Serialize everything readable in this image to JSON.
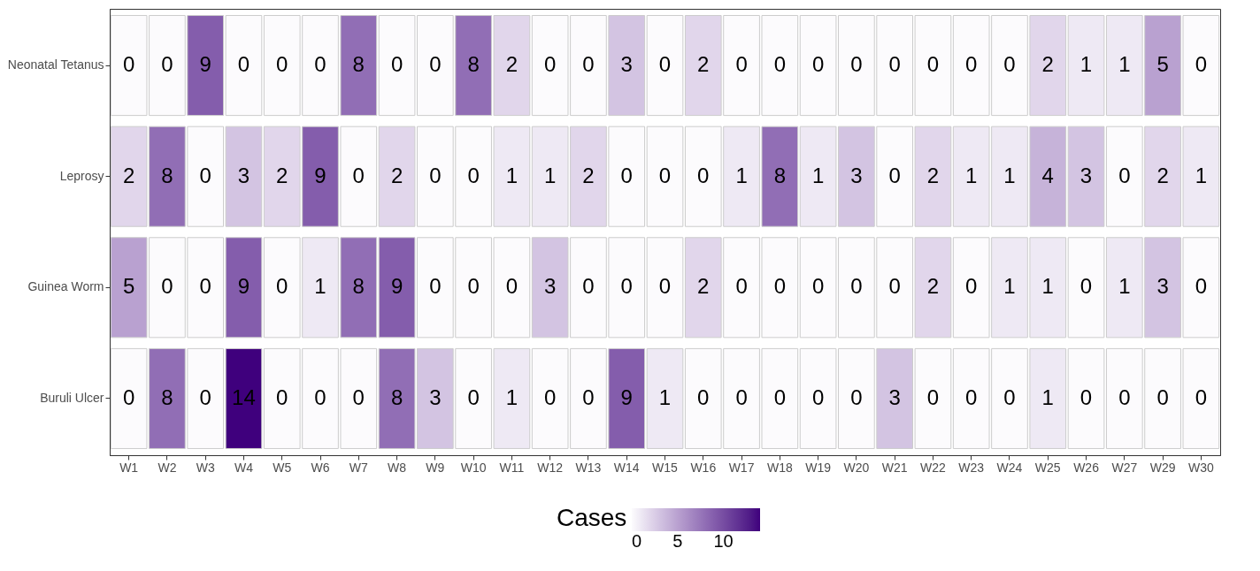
{
  "chart_data": {
    "type": "heatmap",
    "categories": [
      "W1",
      "W2",
      "W3",
      "W4",
      "W5",
      "W6",
      "W7",
      "W8",
      "W9",
      "W10",
      "W11",
      "W12",
      "W13",
      "W14",
      "W15",
      "W16",
      "W17",
      "W18",
      "W19",
      "W20",
      "W21",
      "W22",
      "W23",
      "W24",
      "W25",
      "W26",
      "W27",
      "W29",
      "W30"
    ],
    "y_categories": [
      "Neonatal Tetanus",
      "Leprosy",
      "Guinea Worm",
      "Buruli Ulcer"
    ],
    "cells": [
      [
        0,
        0,
        9,
        0,
        0,
        0,
        8,
        0,
        0,
        8,
        2,
        0,
        0,
        3,
        0,
        2,
        0,
        0,
        0,
        0,
        0,
        0,
        0,
        0,
        2,
        1,
        1,
        5,
        0
      ],
      [
        2,
        8,
        0,
        3,
        2,
        9,
        0,
        2,
        0,
        0,
        1,
        1,
        2,
        0,
        0,
        0,
        1,
        8,
        1,
        3,
        0,
        2,
        1,
        1,
        4,
        3,
        0,
        2,
        1
      ],
      [
        5,
        0,
        0,
        9,
        0,
        1,
        8,
        9,
        0,
        0,
        0,
        3,
        0,
        0,
        0,
        2,
        0,
        0,
        0,
        0,
        0,
        2,
        0,
        1,
        1,
        0,
        1,
        3,
        0
      ],
      [
        0,
        8,
        0,
        14,
        0,
        0,
        0,
        8,
        3,
        0,
        1,
        0,
        0,
        9,
        1,
        0,
        0,
        0,
        0,
        0,
        3,
        0,
        0,
        0,
        1,
        0,
        0,
        0,
        0
      ]
    ],
    "clabel": "Cases",
    "clim": [
      0,
      14
    ],
    "cticks": [
      0,
      5,
      10
    ],
    "data_labels": true
  }
}
